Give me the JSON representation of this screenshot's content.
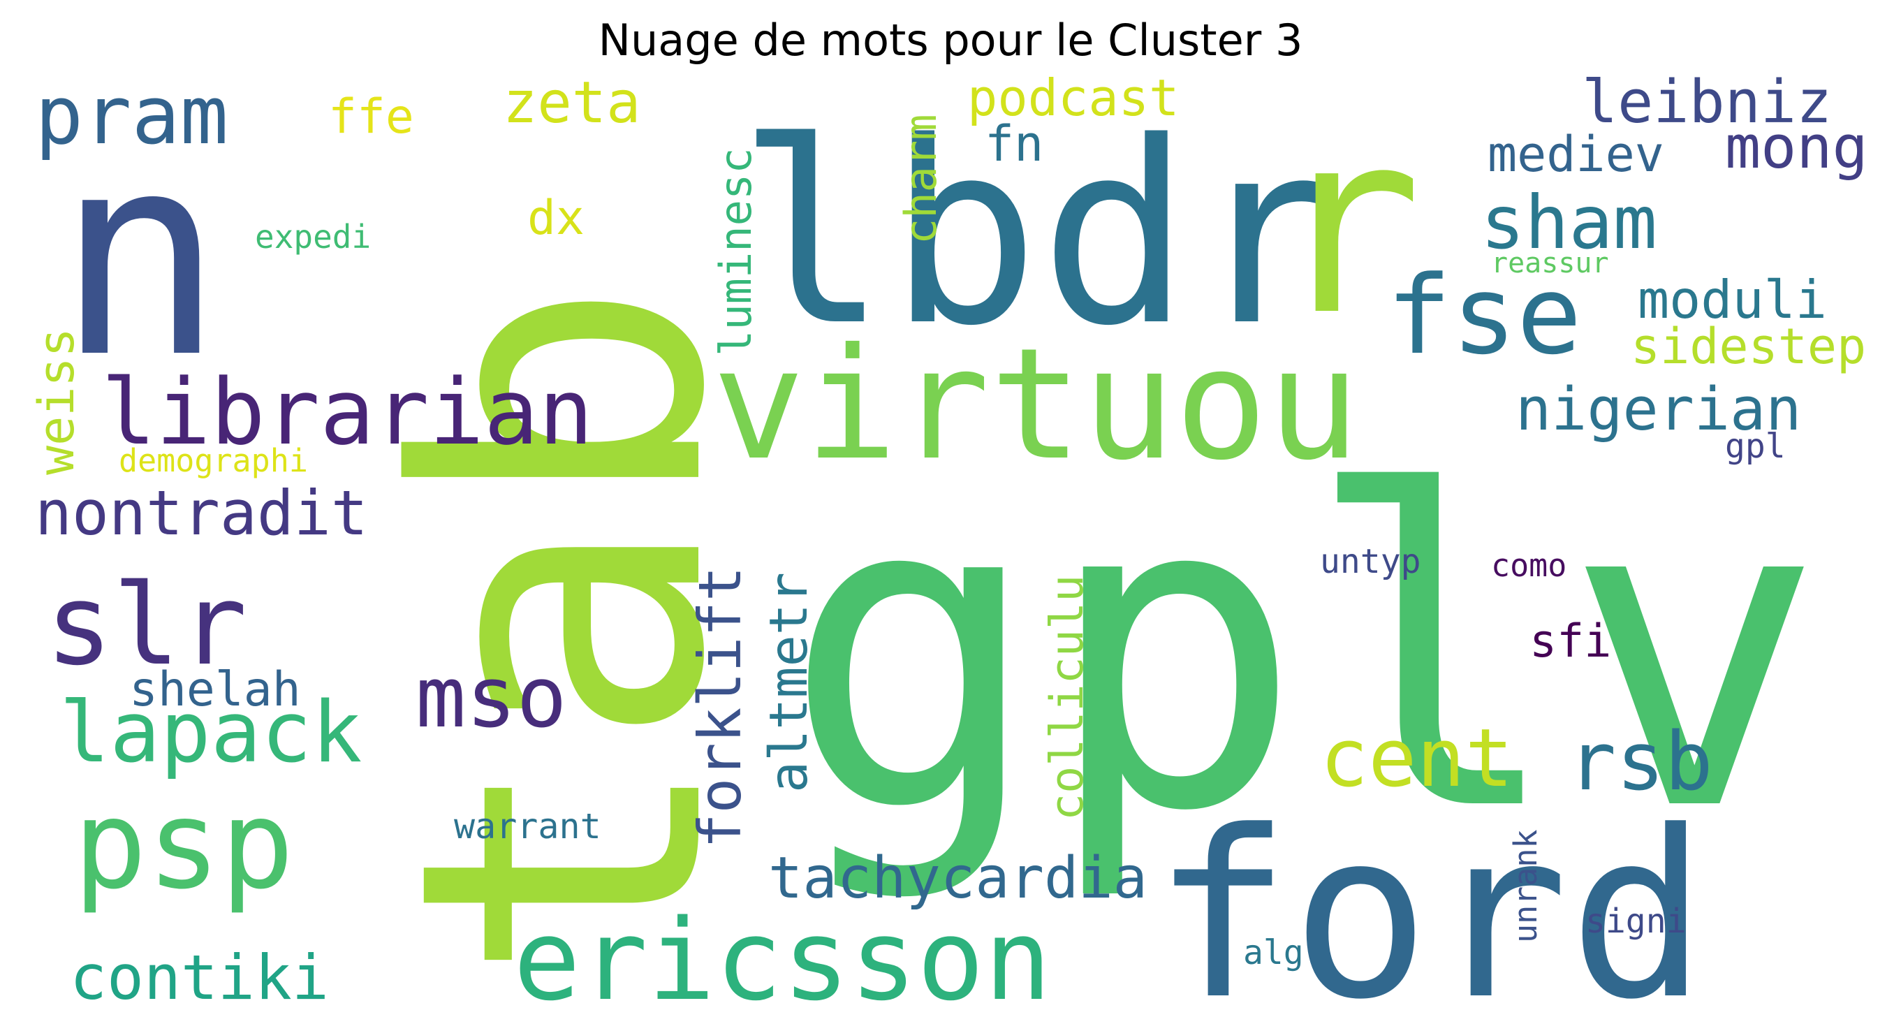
{
  "title": "Nuage de mots pour le Cluster 3",
  "words": [
    {
      "text": "tab",
      "color": "#a0da39"
    },
    {
      "text": "gplv",
      "color": "#4ac16d"
    },
    {
      "text": "n",
      "color": "#3b528b"
    },
    {
      "text": "lbdr",
      "color": "#2c728e"
    },
    {
      "text": "r",
      "color": "#a0da39"
    },
    {
      "text": "ford",
      "color": "#31688e"
    },
    {
      "text": "virtuou",
      "color": "#7ad151"
    },
    {
      "text": "ericsson",
      "color": "#2db27d"
    },
    {
      "text": "librarian",
      "color": "#482576"
    },
    {
      "text": "slr",
      "color": "#46327e"
    },
    {
      "text": "psp",
      "color": "#4ac16d"
    },
    {
      "text": "pram",
      "color": "#33638d"
    },
    {
      "text": "fse",
      "color": "#2c728e"
    },
    {
      "text": "lapack",
      "color": "#35b779"
    },
    {
      "text": "mso",
      "color": "#472d7b"
    },
    {
      "text": "cent",
      "color": "#c2df23"
    },
    {
      "text": "rsb",
      "color": "#2c728e"
    },
    {
      "text": "tachycardia",
      "color": "#31688e"
    },
    {
      "text": "contiki",
      "color": "#20a486"
    },
    {
      "text": "forklift",
      "color": "#3b528b"
    },
    {
      "text": "altmetr",
      "color": "#2a788e"
    },
    {
      "text": "colliculu",
      "color": "#8fd744"
    },
    {
      "text": "nontradit",
      "color": "#443983"
    },
    {
      "text": "nigerian",
      "color": "#2c728e"
    },
    {
      "text": "sham",
      "color": "#2a788e"
    },
    {
      "text": "leibniz",
      "color": "#3e4a89"
    },
    {
      "text": "mong",
      "color": "#423f85"
    },
    {
      "text": "mediev",
      "color": "#33638d"
    },
    {
      "text": "moduli",
      "color": "#2a788e"
    },
    {
      "text": "sidestep",
      "color": "#b5de2b"
    },
    {
      "text": "zeta",
      "color": "#d2e21b"
    },
    {
      "text": "podcast",
      "color": "#d2e21b"
    },
    {
      "text": "ffe",
      "color": "#e5e419"
    },
    {
      "text": "fn",
      "color": "#2c728e"
    },
    {
      "text": "charm",
      "color": "#a0da39"
    },
    {
      "text": "luminesc",
      "color": "#35b779"
    },
    {
      "text": "weiss",
      "color": "#b5de2b"
    },
    {
      "text": "dx",
      "color": "#d8e219"
    },
    {
      "text": "expedi",
      "color": "#3fbc73"
    },
    {
      "text": "demographi",
      "color": "#dde318"
    },
    {
      "text": "shelah",
      "color": "#33638d"
    },
    {
      "text": "sfi",
      "color": "#440154"
    },
    {
      "text": "untyp",
      "color": "#3e4a89"
    },
    {
      "text": "como",
      "color": "#470d60"
    },
    {
      "text": "warrant",
      "color": "#2c728e"
    },
    {
      "text": "unrank",
      "color": "#3b528b"
    },
    {
      "text": "signi",
      "color": "#3e4a89"
    },
    {
      "text": "alg",
      "color": "#2a788e"
    },
    {
      "text": "gpl",
      "color": "#414487"
    },
    {
      "text": "reassur",
      "color": "#5ec962"
    }
  ]
}
